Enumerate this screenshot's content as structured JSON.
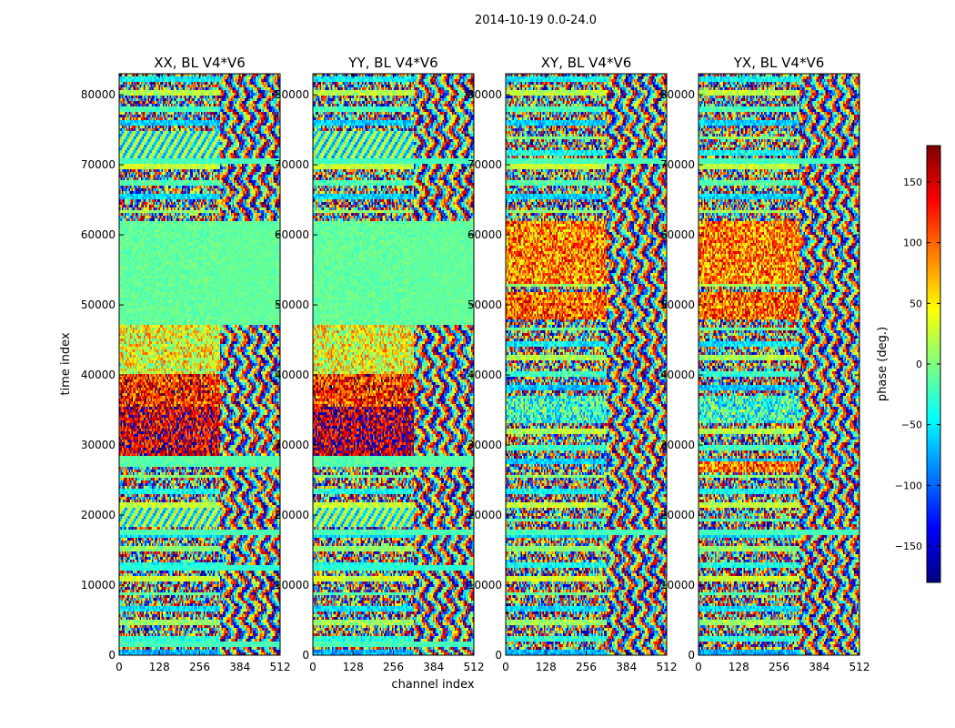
{
  "figure": {
    "suptitle": "2014-10-19 0.0-24.0"
  },
  "chart_data": {
    "type": "heatmap",
    "colormap": "jet",
    "shared_x": {
      "label": "channel index",
      "range": [
        0,
        512
      ],
      "ticks": [
        0,
        128,
        256,
        384,
        512
      ],
      "tick_labels": [
        "0",
        "128",
        "256",
        "384",
        "512"
      ]
    },
    "shared_y": {
      "label": "time index",
      "range": [
        0,
        83000
      ],
      "ticks": [
        0,
        10000,
        20000,
        30000,
        40000,
        50000,
        60000,
        70000,
        80000
      ],
      "tick_labels": [
        "0",
        "10000",
        "20000",
        "30000",
        "40000",
        "50000",
        "60000",
        "70000",
        "80000"
      ]
    },
    "panels": [
      {
        "id": "xx",
        "title": "XX, BL V4*V6",
        "edge_channel": 320,
        "bands": [
          {
            "t0": 1000,
            "t1": 2000,
            "kind": "flat",
            "value": -20
          },
          {
            "t0": 12000,
            "t1": 13000,
            "kind": "flat",
            "value": -30
          },
          {
            "t0": 17000,
            "t1": 18000,
            "kind": "flat",
            "value": -20
          },
          {
            "t0": 18500,
            "t1": 21000,
            "kind": "stripes",
            "value": -15
          },
          {
            "t0": 27000,
            "t1": 28500,
            "kind": "flat",
            "value": -15
          },
          {
            "t0": 28500,
            "t1": 35500,
            "kind": "noise",
            "value": 150
          },
          {
            "t0": 35500,
            "t1": 40000,
            "kind": "noise",
            "value": 120
          },
          {
            "t0": 40000,
            "t1": 47000,
            "kind": "noise",
            "value": 40
          },
          {
            "t0": 47000,
            "t1": 62000,
            "kind": "flat",
            "value": -10
          },
          {
            "t0": 70000,
            "t1": 71000,
            "kind": "flat",
            "value": -20
          },
          {
            "t0": 71000,
            "t1": 75000,
            "kind": "stripes",
            "value": -20
          }
        ]
      },
      {
        "id": "yy",
        "title": "YY, BL V4*V6",
        "edge_channel": 320,
        "bands": [
          {
            "t0": 1000,
            "t1": 2000,
            "kind": "flat",
            "value": -20
          },
          {
            "t0": 12000,
            "t1": 13000,
            "kind": "flat",
            "value": -30
          },
          {
            "t0": 17000,
            "t1": 18000,
            "kind": "flat",
            "value": -20
          },
          {
            "t0": 18500,
            "t1": 21000,
            "kind": "stripes",
            "value": -15
          },
          {
            "t0": 27000,
            "t1": 28500,
            "kind": "flat",
            "value": -15
          },
          {
            "t0": 28500,
            "t1": 35500,
            "kind": "noise",
            "value": 160
          },
          {
            "t0": 35500,
            "t1": 40000,
            "kind": "noise",
            "value": 120
          },
          {
            "t0": 40000,
            "t1": 47000,
            "kind": "noise",
            "value": 40
          },
          {
            "t0": 47000,
            "t1": 62000,
            "kind": "flat",
            "value": -10
          },
          {
            "t0": 70000,
            "t1": 71000,
            "kind": "flat",
            "value": -20
          },
          {
            "t0": 71000,
            "t1": 75000,
            "kind": "stripes",
            "value": -20
          }
        ]
      },
      {
        "id": "xy",
        "title": "XY, BL V4*V6",
        "edge_channel": 320,
        "bands": [
          {
            "t0": 17000,
            "t1": 18000,
            "kind": "flat",
            "value": -20
          },
          {
            "t0": 33000,
            "t1": 37000,
            "kind": "noise",
            "value": -30
          },
          {
            "t0": 48000,
            "t1": 52000,
            "kind": "noise",
            "value": 100
          },
          {
            "t0": 53000,
            "t1": 62000,
            "kind": "noise",
            "value": 90
          },
          {
            "t0": 70000,
            "t1": 71000,
            "kind": "flat",
            "value": -20
          }
        ]
      },
      {
        "id": "yx",
        "title": "YX, BL V4*V6",
        "edge_channel": 320,
        "bands": [
          {
            "t0": 17000,
            "t1": 18000,
            "kind": "flat",
            "value": -20
          },
          {
            "t0": 26000,
            "t1": 27500,
            "kind": "noise",
            "value": 90
          },
          {
            "t0": 33000,
            "t1": 37000,
            "kind": "noise",
            "value": -30
          },
          {
            "t0": 48000,
            "t1": 52000,
            "kind": "noise",
            "value": 100
          },
          {
            "t0": 53000,
            "t1": 62000,
            "kind": "noise",
            "value": 90
          },
          {
            "t0": 70000,
            "t1": 71000,
            "kind": "flat",
            "value": -20
          }
        ]
      }
    ],
    "colorbar": {
      "label": "phase (deg.)",
      "range": [
        -180,
        180
      ],
      "ticks": [
        -150,
        -100,
        -50,
        0,
        50,
        100,
        150
      ],
      "tick_labels": [
        "−150",
        "−100",
        "−50",
        "0",
        "50",
        "100",
        "150"
      ]
    }
  }
}
